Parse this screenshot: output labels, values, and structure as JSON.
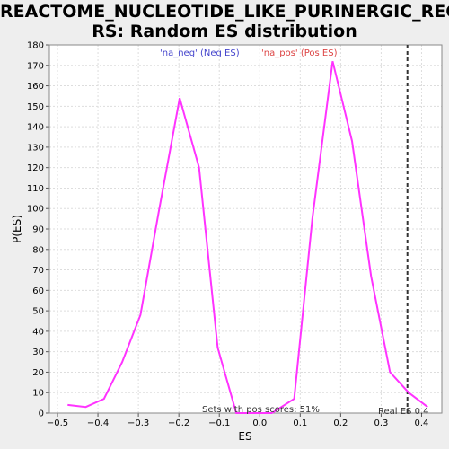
{
  "chart_data": {
    "type": "line",
    "title_line1": "REACTOME_NUCLEOTIDE_LIKE_PURINERGIC_RECEPTO",
    "title_line2": "RS: Random ES distribution",
    "xlabel": "ES",
    "ylabel": "P(ES)",
    "xlim": [
      -0.52,
      0.45
    ],
    "ylim": [
      0,
      180
    ],
    "xticks": [
      -0.5,
      -0.4,
      -0.3,
      -0.2,
      -0.1,
      0.0,
      0.1,
      0.2,
      0.3,
      0.4
    ],
    "xtick_labels": [
      "−0.5",
      "−0.4",
      "−0.3",
      "−0.2",
      "−0.1",
      "0.0",
      "0.1",
      "0.2",
      "0.3",
      "0.4"
    ],
    "yticks": [
      0,
      10,
      20,
      30,
      40,
      50,
      60,
      70,
      80,
      90,
      100,
      110,
      120,
      130,
      140,
      150,
      160,
      170,
      180
    ],
    "grid": true,
    "series": [
      {
        "color": "#ff33ff",
        "x": [
          -0.475,
          -0.43,
          -0.385,
          -0.34,
          -0.295,
          -0.25,
          -0.198,
          -0.15,
          -0.104,
          -0.058,
          -0.012,
          0.03,
          0.085,
          0.13,
          0.18,
          0.228,
          0.275,
          0.322,
          0.368,
          0.415
        ],
        "y": [
          4,
          3,
          7,
          25,
          48,
          98,
          154,
          120,
          32,
          0,
          0,
          0,
          7,
          95,
          172,
          133,
          67,
          20,
          10,
          3
        ]
      }
    ],
    "legend": [
      {
        "label": "'na_neg' (Neg ES)",
        "color": "#4444cc"
      },
      {
        "label": "'na_pos' (Pos ES)",
        "color": "#dd4444"
      }
    ],
    "real_es": {
      "x": 0.365,
      "label": "Real ES 0.4"
    },
    "annotation": "Sets with pos scores: 51%"
  }
}
